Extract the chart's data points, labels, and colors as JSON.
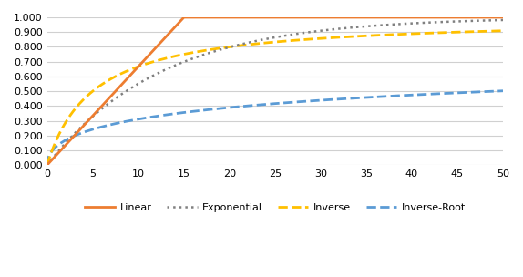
{
  "title": "",
  "xlim": [
    0,
    50
  ],
  "ylim": [
    0.0,
    1.0
  ],
  "xticks": [
    0,
    5,
    10,
    15,
    20,
    25,
    30,
    35,
    40,
    45,
    50
  ],
  "yticks": [
    0.0,
    0.1,
    0.2,
    0.3,
    0.4,
    0.5,
    0.6,
    0.7,
    0.8,
    0.9,
    1.0
  ],
  "background_color": "#ffffff",
  "grid_color": "#d0d0d0",
  "linear_color": "#ED7D31",
  "exponential_color": "#808080",
  "inverse_color": "#FFC000",
  "inverse_root_color": "#5B9BD5",
  "legend_labels": [
    "Linear",
    "Exponential",
    "Inverse",
    "Inverse-Root"
  ],
  "linear_cap": 15,
  "exponential_k": 0.08,
  "inverse_c": 5,
  "inverse_root_c": 7
}
